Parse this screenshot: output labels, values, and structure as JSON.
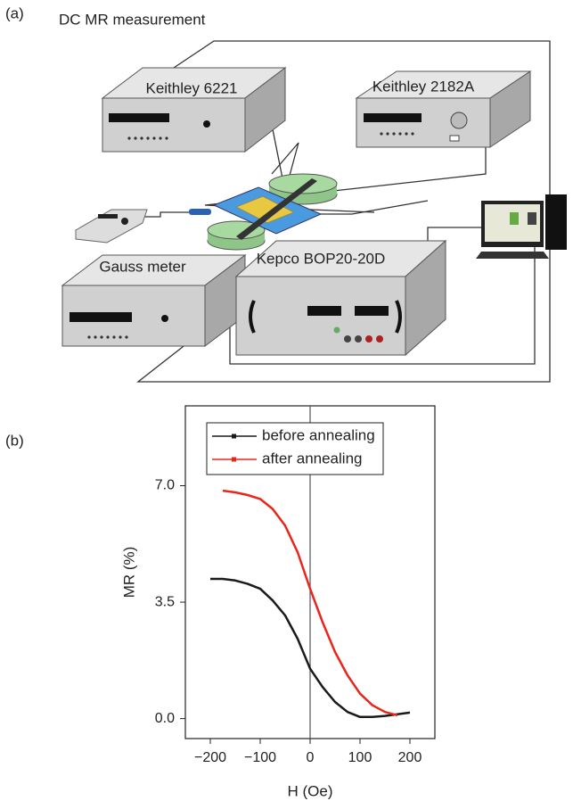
{
  "diagram": {
    "panel_label": "(a)",
    "title": "DC MR measurement",
    "instruments": [
      "Keithley 6221",
      "Keithley 2182A",
      "Gauss meter",
      "Kepco BOP20-20D"
    ]
  },
  "chart_data": {
    "type": "line",
    "panel_label": "(b)",
    "x_label": "H (Oe)",
    "y_label": "MR (%)",
    "x": [
      -200,
      -175,
      -150,
      -125,
      -100,
      -75,
      -50,
      -25,
      0,
      25,
      50,
      75,
      100,
      125,
      150,
      175,
      200
    ],
    "series": [
      {
        "name": "before annealing",
        "color": "#1a1a1a",
        "values": [
          4.2,
          4.2,
          4.15,
          4.05,
          3.9,
          3.55,
          3.1,
          2.4,
          1.5,
          0.95,
          0.5,
          0.2,
          0.05,
          0.05,
          0.08,
          0.13,
          0.18
        ]
      },
      {
        "name": "after annealing",
        "color": "#e8261c",
        "values": [
          null,
          6.85,
          6.8,
          6.72,
          6.6,
          6.3,
          5.8,
          5.0,
          3.9,
          2.9,
          2.0,
          1.3,
          0.75,
          0.4,
          0.2,
          0.1,
          null
        ]
      }
    ],
    "xlim": [
      -250,
      250
    ],
    "xticks": [
      {
        "value": -200,
        "label": "−200"
      },
      {
        "value": -100,
        "label": "−100"
      },
      0,
      100,
      200
    ],
    "ylim": [
      -0.6,
      9.4
    ],
    "yticks": [
      {
        "value": 0,
        "label": "0.0"
      },
      {
        "value": 3.5,
        "label": "3.5"
      },
      {
        "value": 7,
        "label": "7.0"
      }
    ],
    "vline": 0,
    "legend": "top"
  }
}
